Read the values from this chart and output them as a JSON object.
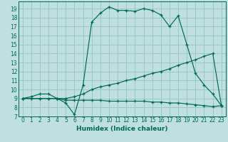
{
  "xlabel": "Humidex (Indice chaleur)",
  "bg_color": "#c0e0e0",
  "grid_color": "#98c8c8",
  "line_color": "#006858",
  "xlim": [
    -0.5,
    23.5
  ],
  "ylim": [
    7,
    19.8
  ],
  "xticks": [
    0,
    1,
    2,
    3,
    4,
    5,
    6,
    7,
    8,
    9,
    10,
    11,
    12,
    13,
    14,
    15,
    16,
    17,
    18,
    19,
    20,
    21,
    22,
    23
  ],
  "yticks": [
    7,
    8,
    9,
    10,
    11,
    12,
    13,
    14,
    15,
    16,
    17,
    18,
    19
  ],
  "lines": [
    {
      "x": [
        0,
        1,
        2,
        3,
        4,
        5,
        6,
        7,
        8,
        9,
        10,
        11,
        12,
        13,
        14,
        15,
        16,
        17,
        18,
        19,
        20,
        21,
        22,
        23
      ],
      "y": [
        9,
        9.2,
        9.5,
        9.5,
        9.0,
        8.5,
        7.2,
        10.5,
        17.5,
        18.5,
        19.2,
        18.8,
        18.8,
        18.7,
        19.0,
        18.8,
        18.3,
        17.0,
        18.2,
        15.0,
        11.8,
        10.5,
        9.5,
        8.2
      ]
    },
    {
      "x": [
        0,
        2,
        3,
        4,
        5,
        6,
        7,
        8,
        9,
        10,
        11,
        12,
        13,
        14,
        15,
        16,
        17,
        18,
        19,
        20,
        21,
        22,
        23
      ],
      "y": [
        9,
        9,
        9,
        9,
        9,
        9.2,
        9.5,
        10,
        10.3,
        10.5,
        10.7,
        11,
        11.2,
        11.5,
        11.8,
        12.0,
        12.3,
        12.7,
        13.0,
        13.3,
        13.7,
        14.0,
        8.2
      ]
    },
    {
      "x": [
        0,
        1,
        2,
        3,
        4,
        5,
        6,
        7,
        8,
        9,
        10,
        11,
        12,
        13,
        14,
        15,
        16,
        17,
        18,
        19,
        20,
        21,
        22,
        23
      ],
      "y": [
        9,
        9.0,
        9.0,
        9.0,
        9.0,
        8.8,
        8.8,
        8.8,
        8.8,
        8.8,
        8.7,
        8.7,
        8.7,
        8.7,
        8.7,
        8.6,
        8.6,
        8.5,
        8.5,
        8.4,
        8.3,
        8.2,
        8.1,
        8.2
      ]
    }
  ]
}
